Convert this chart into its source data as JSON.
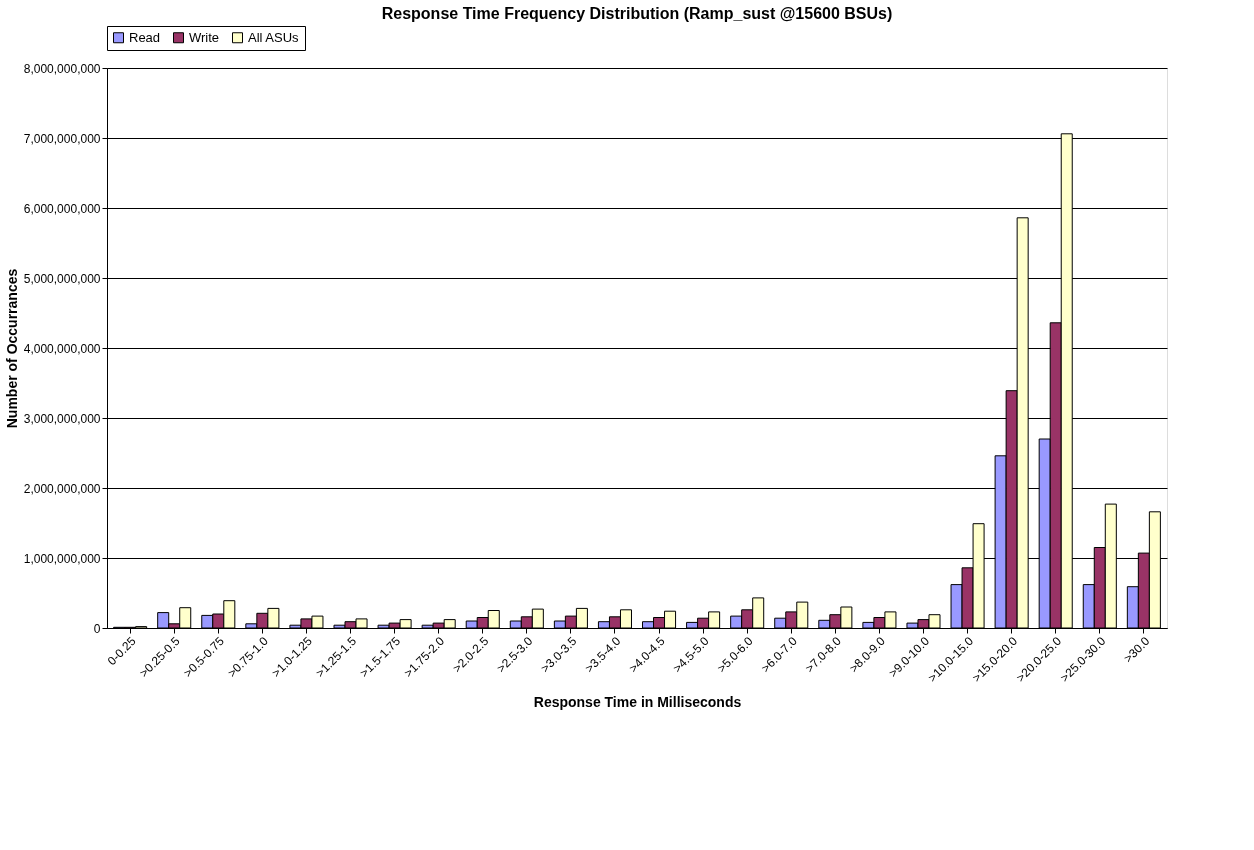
{
  "chart_data": {
    "type": "bar",
    "title": "Response Time Frequency Distribution (Ramp_sust @15600 BSUs)",
    "xlabel": "Response Time in Milliseconds",
    "ylabel": "Number of Occurrances",
    "categories": [
      "0-0.25",
      ">0.25-0.5",
      ">0.5-0.75",
      ">0.75-1.0",
      ">1.0-1.25",
      ">1.25-1.5",
      ">1.5-1.75",
      ">1.75-2.0",
      ">2.0-2.5",
      ">2.5-3.0",
      ">3.0-3.5",
      ">3.5-4.0",
      ">4.0-4.5",
      ">4.5-5.0",
      ">5.0-6.0",
      ">6.0-7.0",
      ">7.0-8.0",
      ">8.0-9.0",
      ">9.0-10.0",
      ">10.0-15.0",
      ">15.0-20.0",
      ">20.0-25.0",
      ">25.0-30.0",
      ">30.0"
    ],
    "series": [
      {
        "name": "Read",
        "color": "#9999ff",
        "values": [
          10000000,
          220000000,
          180000000,
          60000000,
          40000000,
          40000000,
          40000000,
          40000000,
          100000000,
          100000000,
          100000000,
          90000000,
          90000000,
          80000000,
          170000000,
          140000000,
          110000000,
          80000000,
          70000000,
          620000000,
          2460000000,
          2700000000,
          620000000,
          590000000
        ]
      },
      {
        "name": "Write",
        "color": "#993366",
        "values": [
          10000000,
          60000000,
          200000000,
          210000000,
          130000000,
          90000000,
          70000000,
          70000000,
          150000000,
          160000000,
          170000000,
          160000000,
          150000000,
          140000000,
          260000000,
          230000000,
          190000000,
          150000000,
          120000000,
          860000000,
          3390000000,
          4360000000,
          1150000000,
          1070000000
        ]
      },
      {
        "name": "All ASUs",
        "color": "#ffffcc",
        "values": [
          20000000,
          290000000,
          390000000,
          280000000,
          170000000,
          130000000,
          120000000,
          120000000,
          250000000,
          270000000,
          280000000,
          260000000,
          240000000,
          230000000,
          430000000,
          370000000,
          300000000,
          230000000,
          190000000,
          1490000000,
          5860000000,
          7060000000,
          1770000000,
          1660000000
        ]
      }
    ],
    "ylim": [
      0,
      8000000000
    ],
    "yticks": [
      {
        "value": 0,
        "label": "0"
      },
      {
        "value": 1000000000,
        "label": "1,000,000,000"
      },
      {
        "value": 2000000000,
        "label": "2,000,000,000"
      },
      {
        "value": 3000000000,
        "label": "3,000,000,000"
      },
      {
        "value": 4000000000,
        "label": "4,000,000,000"
      },
      {
        "value": 5000000000,
        "label": "5,000,000,000"
      },
      {
        "value": 6000000000,
        "label": "6,000,000,000"
      },
      {
        "value": 7000000000,
        "label": "7,000,000,000"
      },
      {
        "value": 8000000000,
        "label": "8,000,000,000"
      }
    ],
    "grid": "y",
    "legend": "top"
  }
}
